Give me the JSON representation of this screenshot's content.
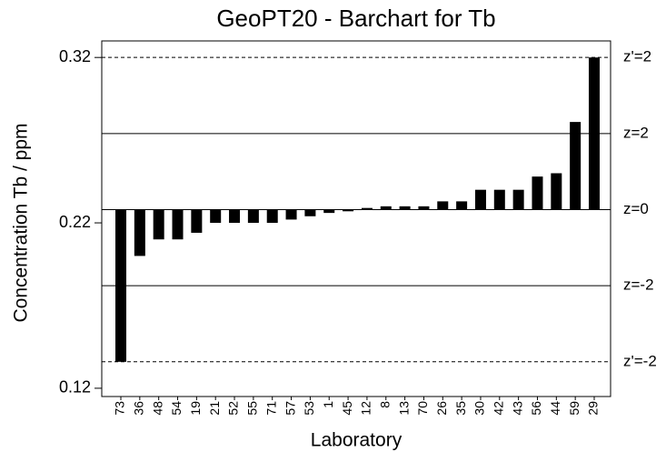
{
  "chart_data": {
    "type": "bar",
    "title": "GeoPT20 - Barchart for Tb",
    "xlabel": "Laboratory",
    "ylabel": "Concentration Tb / ppm",
    "categories": [
      "73",
      "36",
      "48",
      "54",
      "19",
      "21",
      "52",
      "55",
      "71",
      "57",
      "53",
      "1",
      "45",
      "12",
      "8",
      "13",
      "70",
      "26",
      "35",
      "30",
      "42",
      "43",
      "56",
      "44",
      "59",
      "29"
    ],
    "values": [
      0.136,
      0.2,
      0.21,
      0.21,
      0.214,
      0.22,
      0.22,
      0.22,
      0.22,
      0.222,
      0.224,
      0.226,
      0.227,
      0.229,
      0.23,
      0.23,
      0.23,
      0.233,
      0.233,
      0.24,
      0.24,
      0.24,
      0.248,
      0.25,
      0.281,
      0.32
    ],
    "color": "#000000",
    "baseline": 0.228,
    "ylim": [
      0.115,
      0.33
    ],
    "yticks": [
      0.12,
      0.22,
      0.32
    ],
    "reference_lines": [
      {
        "label": "z'=2",
        "value": 0.32,
        "dashed": true
      },
      {
        "label": "z=2",
        "value": 0.274,
        "dashed": false
      },
      {
        "label": "z=0",
        "value": 0.228,
        "dashed": false
      },
      {
        "label": "z=-2",
        "value": 0.182,
        "dashed": false
      },
      {
        "label": "z'=-2",
        "value": 0.136,
        "dashed": true
      }
    ]
  }
}
